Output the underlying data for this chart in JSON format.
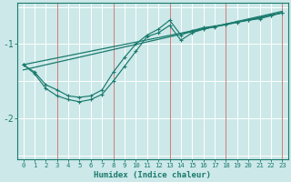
{
  "xlabel": "Humidex (Indice chaleur)",
  "background_color": "#cce8e8",
  "grid_color": "#b0d8d8",
  "line_color": "#1a7a6e",
  "red_line_color": "#cc6666",
  "xlim": [
    -0.5,
    23.5
  ],
  "ylim": [
    -2.55,
    -0.45
  ],
  "yticks": [
    -2,
    -1
  ],
  "xticks": [
    0,
    1,
    2,
    3,
    4,
    5,
    6,
    7,
    8,
    9,
    10,
    11,
    12,
    13,
    14,
    15,
    16,
    17,
    18,
    19,
    20,
    21,
    22,
    23
  ],
  "red_vlines": [
    3,
    8,
    13,
    18,
    23
  ],
  "curve1_x": [
    0,
    1,
    2,
    3,
    4,
    5,
    6,
    7,
    8,
    9,
    10,
    11,
    12,
    13,
    14,
    15,
    16,
    17,
    18,
    19,
    20,
    21,
    22,
    23
  ],
  "curve1_y": [
    -1.28,
    -1.38,
    -1.55,
    -1.62,
    -1.7,
    -1.72,
    -1.7,
    -1.62,
    -1.38,
    -1.18,
    -1.0,
    -0.88,
    -0.8,
    -0.68,
    -0.88,
    -0.82,
    -0.78,
    -0.76,
    -0.74,
    -0.7,
    -0.68,
    -0.66,
    -0.62,
    -0.58
  ],
  "curve2_x": [
    0,
    1,
    2,
    3,
    4,
    5,
    6,
    7,
    8,
    9,
    10,
    11,
    12,
    13,
    14,
    15,
    16,
    17,
    18,
    19,
    20,
    21,
    22,
    23
  ],
  "curve2_y": [
    -1.28,
    -1.4,
    -1.6,
    -1.7,
    -1.75,
    -1.78,
    -1.75,
    -1.68,
    -1.5,
    -1.3,
    -1.1,
    -0.9,
    -0.85,
    -0.75,
    -0.95,
    -0.85,
    -0.8,
    -0.77,
    -0.74,
    -0.71,
    -0.68,
    -0.65,
    -0.61,
    -0.58
  ],
  "trend1_x": [
    0,
    23
  ],
  "trend1_y": [
    -1.28,
    -0.58
  ],
  "trend2_x": [
    0,
    23
  ],
  "trend2_y": [
    -1.35,
    -0.56
  ]
}
